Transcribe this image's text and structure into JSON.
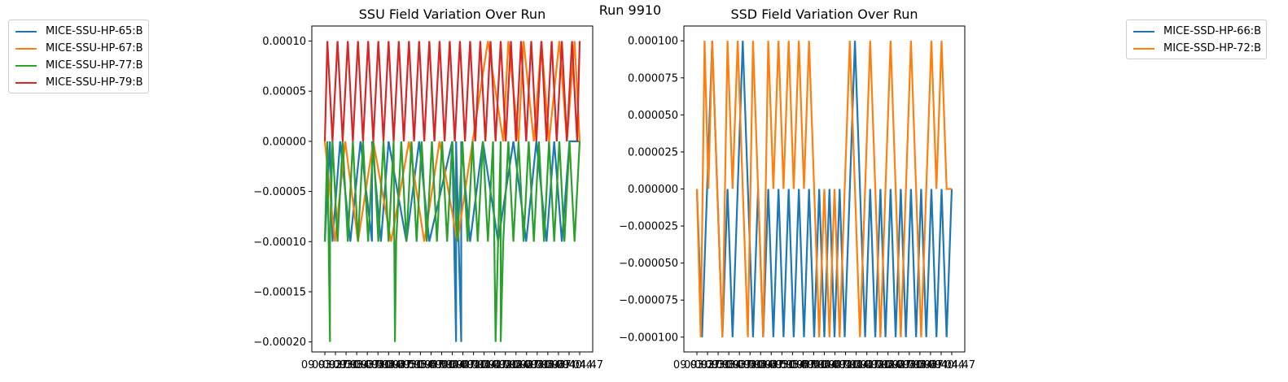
{
  "suptitle": "Run 9910",
  "chart_data": [
    {
      "type": "line",
      "title": "SSU Field Variation Over Run",
      "xlabel": "",
      "ylabel": "",
      "ylim": [
        -0.00021,
        0.000115
      ],
      "yticks": [
        "0.00010",
        "0.00005",
        "0.00000",
        "−0.00005",
        "−0.00010",
        "−0.00015",
        "−0.00020"
      ],
      "ytick_values": [
        0.0001,
        5e-05,
        0.0,
        -5e-05,
        -0.0001,
        -0.00015,
        -0.0002
      ],
      "xticks": [
        "09 03:27",
        "09 03:30",
        "09 03:34",
        "09 03:37",
        "09 03:40",
        "09 03:44",
        "09 03:47",
        "09 03:50",
        "09 03:54",
        "09 03:57",
        "09 04:00",
        "09 04:04",
        "09 04:07",
        "09 04:10",
        "09 04:14",
        "09 04:17",
        "09 04:20",
        "09 04:24",
        "09 04:27",
        "09 04:30",
        "09 04:34",
        "09 04:37",
        "09 04:40",
        "09 04:44",
        "09 04:47"
      ],
      "legend_position": "outside-left",
      "series": [
        {
          "name": "MICE-SSU-HP-65:B",
          "color": "#1f77b4",
          "x": [
            0.0,
            0.02,
            0.03,
            0.06,
            0.1,
            0.14,
            0.185,
            0.185,
            0.22,
            0.25,
            0.32,
            0.37,
            0.41,
            0.5,
            0.515,
            0.515,
            0.535,
            0.535,
            0.57,
            0.62,
            0.68,
            0.74,
            0.79,
            0.83,
            0.87,
            0.9,
            0.93,
            0.96,
            1.0
          ],
          "values": [
            -0.0001,
            0.0,
            -0.0001,
            0.0,
            -0.0001,
            0.0,
            -0.0001,
            0.0,
            -0.0001,
            0.0,
            -0.0001,
            0.0,
            -0.0001,
            0.0,
            -0.0002,
            0.0,
            -0.0002,
            0.0,
            -0.0001,
            0.0,
            -0.0001,
            0.0,
            -0.0001,
            0.0,
            -0.0001,
            0.0,
            -0.0001,
            0.0,
            0.0
          ]
        },
        {
          "name": "MICE-SSU-HP-67:B",
          "color": "#ff7f0e",
          "x": [
            0.0,
            0.04,
            0.08,
            0.13,
            0.19,
            0.26,
            0.33,
            0.39,
            0.45,
            0.52,
            0.58,
            0.64,
            0.7,
            0.72,
            0.76,
            0.78,
            0.82,
            0.85,
            0.88,
            0.92,
            0.95,
            0.98,
            1.0
          ],
          "values": [
            0.0,
            -0.0001,
            0.0,
            -0.0001,
            0.0,
            -0.0001,
            0.0,
            -0.0001,
            0.0,
            -0.0001,
            0.0,
            0.0001,
            0.0,
            0.0001,
            0.0,
            0.0001,
            0.0,
            0.0001,
            0.0,
            0.0001,
            0.0,
            0.0001,
            0.0
          ]
        },
        {
          "name": "MICE-SSU-HP-77:B",
          "color": "#2ca02c",
          "x": [
            0.0,
            0.01,
            0.015,
            0.02,
            0.02,
            0.03,
            0.05,
            0.07,
            0.09,
            0.11,
            0.13,
            0.15,
            0.17,
            0.19,
            0.21,
            0.23,
            0.25,
            0.27,
            0.275,
            0.28,
            0.3,
            0.32,
            0.34,
            0.36,
            0.38,
            0.4,
            0.42,
            0.44,
            0.46,
            0.48,
            0.5,
            0.52,
            0.54,
            0.56,
            0.58,
            0.6,
            0.62,
            0.64,
            0.66,
            0.67,
            0.68,
            0.69,
            0.69,
            0.7,
            0.72,
            0.74,
            0.76,
            0.78,
            0.8,
            0.82,
            0.84,
            0.86,
            0.88,
            0.9,
            0.92,
            0.94,
            0.96,
            0.98,
            1.0
          ],
          "values": [
            -0.0001,
            0.0,
            -0.0001,
            -0.0002,
            -0.0001,
            0.0,
            -0.0001,
            0.0,
            -0.0001,
            0.0,
            -0.0001,
            0.0,
            -0.0001,
            0.0,
            -0.0001,
            0.0,
            -0.0001,
            0.0,
            -0.0002,
            -0.0001,
            0.0,
            -0.0001,
            0.0,
            -0.0001,
            0.0,
            -0.0001,
            0.0,
            -0.0001,
            0.0,
            -0.0001,
            0.0,
            -0.0001,
            0.0,
            -0.0001,
            0.0,
            -0.0001,
            0.0,
            -0.0001,
            0.0,
            -0.0002,
            -0.0001,
            0.0,
            -0.0002,
            -0.0001,
            0.0,
            -0.0001,
            0.0,
            -0.0001,
            0.0,
            -0.0001,
            0.0,
            -0.0001,
            0.0,
            -0.0001,
            0.0,
            -0.0001,
            0.0,
            -0.0001,
            0.0
          ]
        },
        {
          "name": "MICE-SSU-HP-79:B",
          "color": "#d62728",
          "x": [
            0.0,
            0.01,
            0.03,
            0.05,
            0.07,
            0.09,
            0.11,
            0.13,
            0.15,
            0.17,
            0.19,
            0.21,
            0.23,
            0.25,
            0.27,
            0.29,
            0.31,
            0.33,
            0.35,
            0.37,
            0.39,
            0.41,
            0.43,
            0.45,
            0.47,
            0.49,
            0.51,
            0.53,
            0.55,
            0.57,
            0.59,
            0.61,
            0.63,
            0.65,
            0.67,
            0.69,
            0.71,
            0.73,
            0.75,
            0.77,
            0.79,
            0.81,
            0.83,
            0.85,
            0.87,
            0.89,
            0.91,
            0.93,
            0.95,
            0.97,
            0.99,
            1.0
          ],
          "values": [
            0.0,
            0.0001,
            0.0,
            0.0001,
            0.0,
            0.0001,
            0.0,
            0.0001,
            0.0,
            0.0001,
            0.0,
            0.0001,
            0.0,
            0.0001,
            0.0,
            0.0001,
            0.0,
            0.0001,
            0.0,
            0.0001,
            0.0,
            0.0001,
            0.0,
            0.0001,
            0.0,
            0.0001,
            0.0,
            0.0001,
            0.0,
            0.0001,
            0.0,
            0.0001,
            0.0,
            0.0001,
            0.0,
            0.0001,
            0.0,
            0.0001,
            0.0,
            0.0001,
            0.0,
            0.0001,
            0.0,
            0.0001,
            0.0,
            0.0001,
            0.0,
            0.0001,
            0.0,
            0.0001,
            0.0,
            0.0001
          ]
        }
      ]
    },
    {
      "type": "line",
      "title": "SSD Field Variation Over Run",
      "xlabel": "",
      "ylabel": "",
      "ylim": [
        -0.00011,
        0.00011
      ],
      "yticks": [
        "0.000100",
        "0.000075",
        "0.000050",
        "0.000025",
        "0.000000",
        "−0.000025",
        "−0.000050",
        "−0.000075",
        "−0.000100"
      ],
      "ytick_values": [
        0.0001,
        7.5e-05,
        5e-05,
        2.5e-05,
        0.0,
        -2.5e-05,
        -5e-05,
        -7.5e-05,
        -0.0001
      ],
      "xticks": [
        "09 03:27",
        "09 03:30",
        "09 03:34",
        "09 03:37",
        "09 03:40",
        "09 03:44",
        "09 03:47",
        "09 03:50",
        "09 03:54",
        "09 03:57",
        "09 04:00",
        "09 04:04",
        "09 04:07",
        "09 04:10",
        "09 04:14",
        "09 04:17",
        "09 04:20",
        "09 04:24",
        "09 04:27",
        "09 04:30",
        "09 04:34",
        "09 04:37",
        "09 04:40",
        "09 04:44",
        "09 04:47"
      ],
      "legend_position": "outside-right",
      "series": [
        {
          "name": "MICE-SSD-HP-66:B",
          "color": "#1f77b4",
          "x": [
            0.0,
            0.02,
            0.04,
            0.06,
            0.08,
            0.1,
            0.12,
            0.14,
            0.16,
            0.18,
            0.2,
            0.22,
            0.24,
            0.26,
            0.28,
            0.3,
            0.32,
            0.34,
            0.36,
            0.38,
            0.4,
            0.42,
            0.44,
            0.46,
            0.48,
            0.5,
            0.52,
            0.54,
            0.56,
            0.58,
            0.6,
            0.62,
            0.64,
            0.66,
            0.68,
            0.7,
            0.72,
            0.74,
            0.76,
            0.78,
            0.8,
            0.82,
            0.84,
            0.86,
            0.88,
            0.9,
            0.92,
            0.94,
            0.96,
            0.98,
            1.0
          ],
          "values": [
            0.0,
            -0.0001,
            0.0,
            0.0001,
            0.0,
            -0.0001,
            0.0,
            -0.0001,
            0.0,
            0.0001,
            0.0,
            -0.0001,
            0.0,
            -0.0001,
            0.0,
            -0.0001,
            0.0,
            -0.0001,
            0.0,
            -0.0001,
            0.0,
            -0.0001,
            0.0,
            -0.0001,
            0.0,
            -0.0001,
            0.0,
            -0.0001,
            0.0,
            -0.0001,
            0.0,
            0.0001,
            0.0,
            -0.0001,
            0.0,
            -0.0001,
            0.0,
            -0.0001,
            0.0,
            -0.0001,
            0.0,
            -0.0001,
            0.0,
            -0.0001,
            0.0,
            -0.0001,
            0.0,
            -0.0001,
            0.0,
            -0.0001,
            0.0
          ]
        },
        {
          "name": "MICE-SSD-HP-72:B",
          "color": "#ff7f0e",
          "x": [
            0.0,
            0.015,
            0.03,
            0.045,
            0.06,
            0.08,
            0.1,
            0.12,
            0.14,
            0.16,
            0.18,
            0.2,
            0.22,
            0.24,
            0.26,
            0.28,
            0.3,
            0.32,
            0.34,
            0.36,
            0.38,
            0.4,
            0.42,
            0.44,
            0.46,
            0.48,
            0.5,
            0.52,
            0.54,
            0.56,
            0.58,
            0.6,
            0.62,
            0.64,
            0.66,
            0.68,
            0.7,
            0.72,
            0.74,
            0.76,
            0.78,
            0.8,
            0.82,
            0.84,
            0.86,
            0.88,
            0.9,
            0.92,
            0.94,
            0.96,
            0.98,
            1.0
          ],
          "values": [
            0.0,
            -0.0001,
            0.0001,
            0.0,
            0.0001,
            0.0,
            -0.0001,
            0.0001,
            0.0,
            0.0001,
            0.0,
            -0.0001,
            0.0001,
            0.0,
            -0.0001,
            0.0001,
            0.0,
            0.0001,
            0.0,
            0.0001,
            0.0,
            0.0001,
            0.0,
            0.0001,
            0.0,
            -0.0001,
            0.0,
            -0.0001,
            0.0,
            -0.0001,
            0.0,
            0.0001,
            0.0,
            -0.0001,
            0.0,
            0.0001,
            0.0,
            -0.0001,
            0.0,
            0.0001,
            0.0,
            -0.0001,
            0.0,
            0.0001,
            0.0,
            -0.0001,
            0.0,
            0.0001,
            0.0,
            0.0001,
            0.0,
            0.0
          ]
        }
      ]
    }
  ]
}
